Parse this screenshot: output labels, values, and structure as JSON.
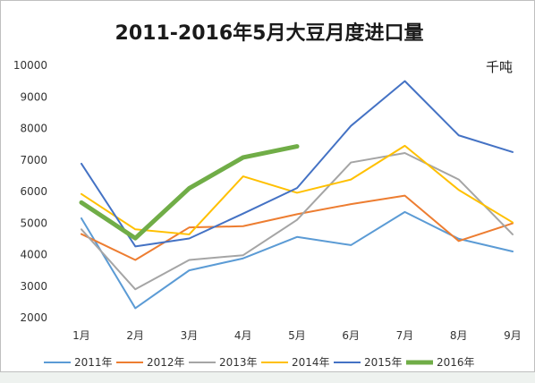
{
  "chart_data": {
    "type": "line",
    "title": "2011-2016年5月大豆月度进口量",
    "unit": "千吨",
    "categories": [
      "1月",
      "2月",
      "3月",
      "4月",
      "5月",
      "6月",
      "7月",
      "8月",
      "9月"
    ],
    "ylim": [
      2000,
      10000
    ],
    "yticks": [
      "2000",
      "3000",
      "4000",
      "5000",
      "6000",
      "7000",
      "8000",
      "9000",
      "10000"
    ],
    "grid": false,
    "legend_position": "bottom",
    "series": [
      {
        "name": "2011年",
        "color": "#5b9bd5",
        "values": [
          5150,
          2300,
          3500,
          3880,
          4560,
          4300,
          5350,
          4500,
          4100
        ]
      },
      {
        "name": "2012年",
        "color": "#ed7d31",
        "values": [
          4650,
          3830,
          4860,
          4900,
          5280,
          5600,
          5870,
          4430,
          4990
        ]
      },
      {
        "name": "2013年",
        "color": "#a5a5a5",
        "values": [
          4800,
          2900,
          3830,
          3980,
          5100,
          6920,
          7220,
          6380,
          4640
        ]
      },
      {
        "name": "2014年",
        "color": "#ffc000",
        "values": [
          5920,
          4800,
          4640,
          6480,
          5960,
          6380,
          7450,
          6050,
          5020
        ]
      },
      {
        "name": "2015年",
        "color": "#4472c4",
        "values": [
          6880,
          4260,
          4510,
          5300,
          6110,
          8080,
          9500,
          7780,
          7250
        ]
      },
      {
        "name": "2016年",
        "color": "#70ad47",
        "values": [
          5650,
          4520,
          6100,
          7080,
          7430,
          null,
          null,
          null,
          null
        ]
      }
    ]
  }
}
